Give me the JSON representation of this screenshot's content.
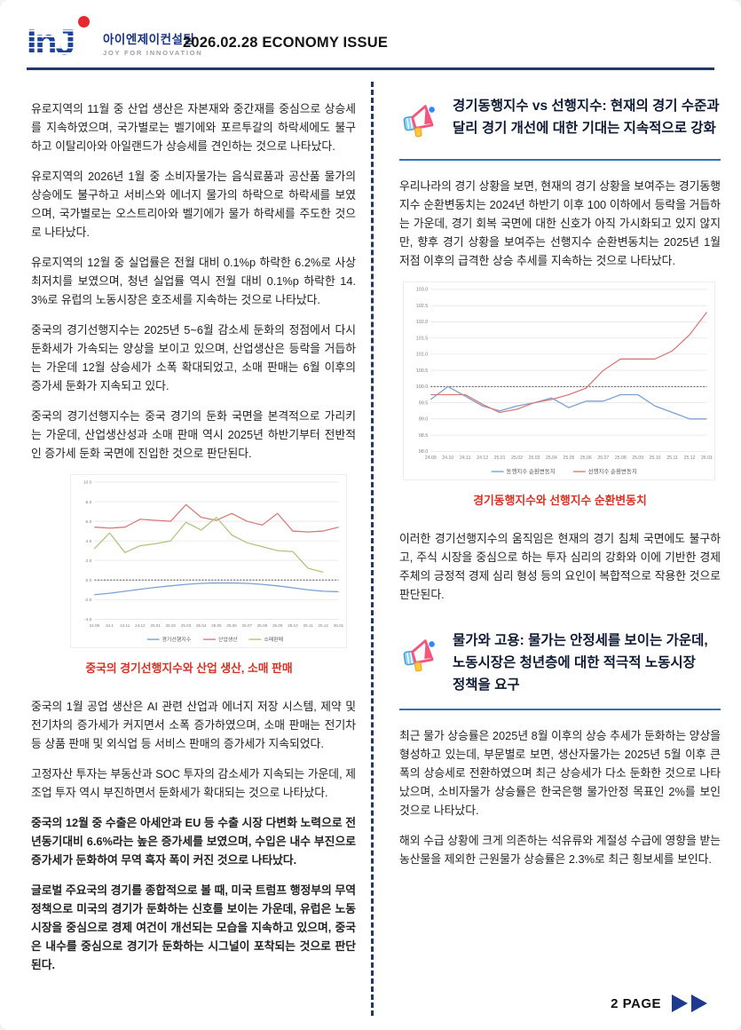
{
  "header": {
    "logo": {
      "mark": "InJ",
      "company": "아이엔제이컨설팅",
      "tagline": "JOY FOR INNOVATION"
    },
    "title": "2026.02.28 ECONOMY ISSUE"
  },
  "colors": {
    "navy_rule": "#1f3864",
    "heading_rule_blue": "#2e74b5",
    "caption_red": "#d93025",
    "logo_blue": "#1d4399",
    "logo_red": "#e8282f"
  },
  "left_column": {
    "blocks": [
      {
        "type": "p",
        "bold": false,
        "text": "유로지역의 11월 중 산업 생산은 자본재와 중간재를 중심으로 상승세를 지속하였으며, 국가별로는 벨기에와 포르투갈의 하락세에도 불구하고 이탈리아와 아일랜드가 상승세를 견인하는 것으로 나타났다."
      },
      {
        "type": "p",
        "bold": false,
        "text": "유로지역의 2026년 1월 중 소비자물가는 음식료품과 공산품 물가의 상승에도 불구하고 서비스와 에너지 물가의 하락으로 하락세를 보였으며, 국가별로는 오스트리아와 벨기에가 물가 하락세를 주도한 것으로 나타났다."
      },
      {
        "type": "p",
        "bold": false,
        "text": "유로지역의 12월 중 실업률은 전월 대비 0.1%p 하락한 6.2%로 사상 최저치를 보였으며, 청년 실업률 역시 전월 대비 0.1%p 하락한 14.3%로 유럽의 노동시장은 호조세를 지속하는 것으로 나타났다."
      },
      {
        "type": "p",
        "bold": false,
        "text": "중국의 경기선행지수는 2025년 5~6월 감소세 둔화의 정점에서 다시 둔화세가 가속되는 양상을 보이고 있으며, 산업생산은 등락을 거듭하는 가운데 12월 상승세가 소폭 확대되었고, 소매 판매는 6월 이후의 증가세 둔화가 지속되고 있다."
      },
      {
        "type": "p",
        "bold": false,
        "text": "중국의 경기선행지수는 중국 경기의 둔화 국면을 본격적으로 가리키는 가운데, 산업생산성과 소매 판매 역시 2025년 하반기부터 전반적인 증가세 둔화 국면에 진입한 것으로 판단된다."
      },
      {
        "type": "chart",
        "chart": 0
      },
      {
        "type": "p",
        "bold": false,
        "text": "중국의 1월 공업 생산은 AI 관련 산업과 에너지 저장 시스템, 제약 및 전기차의 증가세가 커지면서 소폭 증가하였으며, 소매 판매는 전기차 등 상품 판매 및 외식업 등 서비스 판매의 증가세가 지속되었다."
      },
      {
        "type": "p",
        "bold": false,
        "text": "고정자산 투자는 부동산과 SOC 투자의 감소세가 지속되는 가운데, 제조업 투자 역시 부진하면서 둔화세가 확대되는 것으로 나타났다."
      },
      {
        "type": "p",
        "bold": true,
        "text": "중국의 12월 중 수출은 아세안과 EU 등 수출 시장 다변화 노력으로 전년동기대비 6.6%라는 높은 증가세를 보였으며, 수입은 내수 부진으로 증가세가 둔화하여 무역 흑자 폭이 커진 것으로 나타났다."
      },
      {
        "type": "p",
        "bold": true,
        "text": "글로벌 주요국의 경기를 종합적으로 볼 때, 미국 트럼프 행정부의 무역정책으로 미국의 경기가 둔화하는 신호를 보이는 가운데, 유럽은 노동시장을 중심으로 경제 여건이 개선되는 모습을 지속하고 있으며, 중국은 내수를 중심으로 경기가 둔화하는 시그널이 포착되는 것으로 판단된다."
      }
    ]
  },
  "right_column": {
    "sections": [
      {
        "heading": "경기동행지수 vs 선행지수: 현재의 경기 수준과 달리 경기 개선에 대한 기대는 지속적으로 강화",
        "blocks": [
          {
            "type": "p",
            "bold": false,
            "text": "우리나라의 경기 상황을 보면, 현재의 경기 상황을 보여주는 경기동행지수 순환변동치는 2024년 하반기 이후 100 이하에서 등락을 거듭하는 가운데, 경기 회복 국면에 대한 신호가 아직 가시화되고 있지 않지만, 향후 경기 상황을 보여주는 선행지수 순환변동치는 2025년 1월 저점 이후의 급격한 상승 추세를 지속하는 것으로 나타났다."
          },
          {
            "type": "chart",
            "chart": 1
          },
          {
            "type": "p",
            "bold": false,
            "text": "이러한 경기선행지수의 움직임은 현재의 경기 침체 국면에도 불구하고, 주식 시장을 중심으로 하는 투자 심리의 강화와 이에 기반한 경제 주체의 긍정적 경제 심리 형성 등의 요인이 복합적으로 작용한 것으로 판단된다."
          }
        ]
      },
      {
        "heading": "물가와 고용: 물가는 안정세를 보이는 가운데, 노동시장은 청년층에 대한 적극적 노동시장 정책을 요구",
        "blocks": [
          {
            "type": "p",
            "bold": false,
            "text": "최근 물가 상승률은 2025년 8월 이후의 상승 추세가 둔화하는 양상을 형성하고 있는데, 부문별로 보면, 생산자물가는 2025년 5월 이후 큰 폭의 상승세로 전환하였으며 최근 상승세가 다소 둔화한 것으로 나타났으며, 소비자물가 상승률은 한국은행 물가안정 목표인 2%를 보인 것으로 나타났다."
          },
          {
            "type": "p",
            "bold": false,
            "text": "해외 수급 상황에 크게 의존하는 석유류와 계절성 수급에 영향을 받는 농산물을 제외한 근원물가 상승률은 2.3%로 최근 횡보세를 보인다."
          }
        ]
      }
    ]
  },
  "footer": {
    "page_label": "2 PAGE"
  },
  "chart_data": [
    {
      "type": "line",
      "title": "중국의 경기선행지수와 산업 생산, 소매 판매",
      "x": [
        "24.09",
        "24.1",
        "24.11",
        "24.12",
        "25.01",
        "25.02",
        "25.03",
        "25.04",
        "25.05",
        "25.06",
        "25.07",
        "25.08",
        "25.09",
        "25.10",
        "25.11",
        "25.12",
        "26.01"
      ],
      "ylabel": "",
      "xlabel": "",
      "ylim": [
        -4,
        10
      ],
      "ystep": 2,
      "ref_line": 0,
      "grid": true,
      "legend_position": "bottom",
      "series": [
        {
          "name": "경기선행지수",
          "color": "#7da0d4",
          "values": [
            -1.5,
            -1.35,
            -1.15,
            -0.95,
            -0.75,
            -0.6,
            -0.45,
            -0.35,
            -0.3,
            -0.3,
            -0.35,
            -0.45,
            -0.6,
            -0.8,
            -1.0,
            -1.15,
            -1.2
          ]
        },
        {
          "name": "산업생산",
          "color": "#d97b7b",
          "values": [
            5.4,
            5.3,
            5.4,
            6.2,
            6.1,
            6.0,
            7.7,
            6.4,
            6.1,
            6.8,
            6.0,
            5.6,
            6.8,
            5.0,
            4.9,
            5.0,
            5.4
          ]
        },
        {
          "name": "소매판매",
          "color": "#aec57e",
          "values": [
            3.2,
            4.8,
            2.8,
            3.5,
            3.7,
            4.0,
            5.9,
            5.1,
            6.4,
            4.6,
            3.8,
            3.4,
            3.0,
            2.9,
            1.2,
            0.8,
            null
          ]
        }
      ]
    },
    {
      "type": "line",
      "title": "경기동행지수와 선행지수 순환변동치",
      "x": [
        "24.09",
        "24.10",
        "24.11",
        "24.12",
        "25.01",
        "25.02",
        "25.03",
        "25.04",
        "25.05",
        "25.06",
        "25.07",
        "25.08",
        "25.09",
        "25.10",
        "25.11",
        "25.12",
        "26.01"
      ],
      "ylabel": "",
      "xlabel": "",
      "ylim": [
        98,
        103
      ],
      "ystep": 0.5,
      "ref_line": 100,
      "grid": true,
      "legend_position": "bottom",
      "series": [
        {
          "name": "동행지수 순환변동치",
          "color": "#7da0d4",
          "values": [
            99.6,
            100.0,
            99.7,
            99.4,
            99.25,
            99.4,
            99.5,
            99.65,
            99.35,
            99.55,
            99.55,
            99.75,
            99.75,
            99.4,
            99.2,
            99.0,
            99.0
          ]
        },
        {
          "name": "선행지수 순환변동치",
          "color": "#d97b7b",
          "values": [
            99.75,
            99.75,
            99.75,
            99.45,
            99.2,
            99.3,
            99.5,
            99.6,
            99.75,
            99.95,
            100.5,
            100.85,
            100.85,
            100.85,
            101.1,
            101.6,
            102.3
          ]
        }
      ]
    }
  ]
}
